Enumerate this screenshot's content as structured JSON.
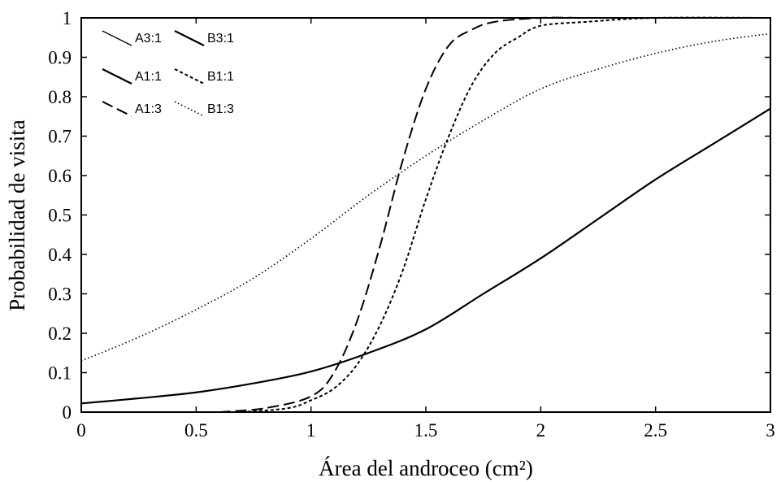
{
  "chart_data": {
    "type": "line",
    "xlabel": "Área del androceo (cm²)",
    "ylabel": "Probabilidad de visita",
    "xlim": [
      0,
      3
    ],
    "ylim": [
      0,
      1
    ],
    "x_ticks": [
      "0",
      "0.5",
      "1",
      "1.5",
      "2",
      "2.5",
      "3"
    ],
    "y_ticks": [
      "0",
      "0.1",
      "0.2",
      "0.3",
      "0.4",
      "0.5",
      "0.6",
      "0.7",
      "0.8",
      "0.9",
      "1"
    ],
    "grid": false,
    "legend_position": "top-left",
    "legend": [
      {
        "label": "A3:1",
        "style": "thin-solid"
      },
      {
        "label": "B3:1",
        "style": "solid"
      },
      {
        "label": "A1:1",
        "style": "solid"
      },
      {
        "label": "B1:1",
        "style": "short-dash"
      },
      {
        "label": "A1:3",
        "style": "long-dash"
      },
      {
        "label": "B1:3",
        "style": "dotted"
      }
    ],
    "series": [
      {
        "style": "solid",
        "x": [
          0,
          0.25,
          0.5,
          0.75,
          1.0,
          1.25,
          1.5,
          1.75,
          2.0,
          2.25,
          2.5,
          2.75,
          3.0
        ],
        "y": [
          0.022,
          0.035,
          0.05,
          0.073,
          0.103,
          0.15,
          0.21,
          0.3,
          0.39,
          0.49,
          0.59,
          0.68,
          0.77
        ]
      },
      {
        "style": "long-dash",
        "x": [
          0.6,
          0.8,
          1.0,
          1.1,
          1.2,
          1.3,
          1.4,
          1.5,
          1.6,
          1.7,
          1.8,
          2.0,
          2.2,
          2.5,
          3.0
        ],
        "y": [
          0.0,
          0.01,
          0.04,
          0.1,
          0.23,
          0.42,
          0.64,
          0.82,
          0.93,
          0.97,
          0.99,
          1.0,
          1.0,
          1.0,
          1.0
        ]
      },
      {
        "style": "short-dash",
        "x": [
          0.7,
          0.9,
          1.0,
          1.1,
          1.2,
          1.3,
          1.4,
          1.5,
          1.6,
          1.7,
          1.8,
          1.9,
          2.0,
          2.2,
          2.5,
          3.0
        ],
        "y": [
          0.0,
          0.01,
          0.03,
          0.06,
          0.12,
          0.22,
          0.36,
          0.54,
          0.7,
          0.83,
          0.91,
          0.95,
          0.98,
          0.99,
          1.0,
          1.0
        ]
      },
      {
        "style": "dotted",
        "x": [
          0,
          0.25,
          0.5,
          0.75,
          1.0,
          1.25,
          1.5,
          1.75,
          2.0,
          2.25,
          2.5,
          2.75,
          3.0
        ],
        "y": [
          0.13,
          0.19,
          0.26,
          0.34,
          0.44,
          0.55,
          0.65,
          0.74,
          0.82,
          0.87,
          0.91,
          0.94,
          0.96
        ]
      }
    ]
  }
}
